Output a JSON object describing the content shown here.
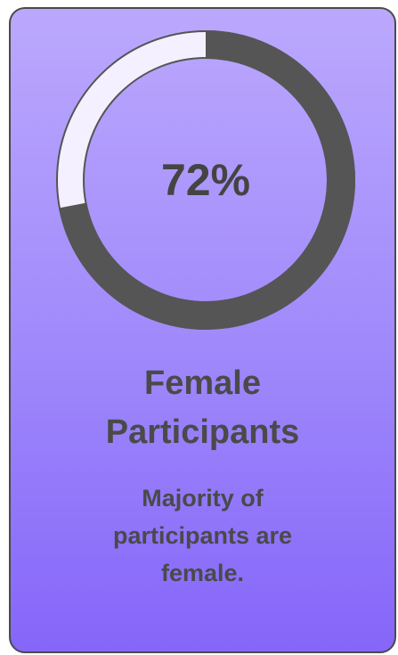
{
  "chart_data": {
    "type": "donut",
    "values": [
      72
    ],
    "value_labels": [
      "72%"
    ],
    "color": "#555555",
    "title": "Female Participants",
    "subtitle": "Majority of participants are female."
  }
}
